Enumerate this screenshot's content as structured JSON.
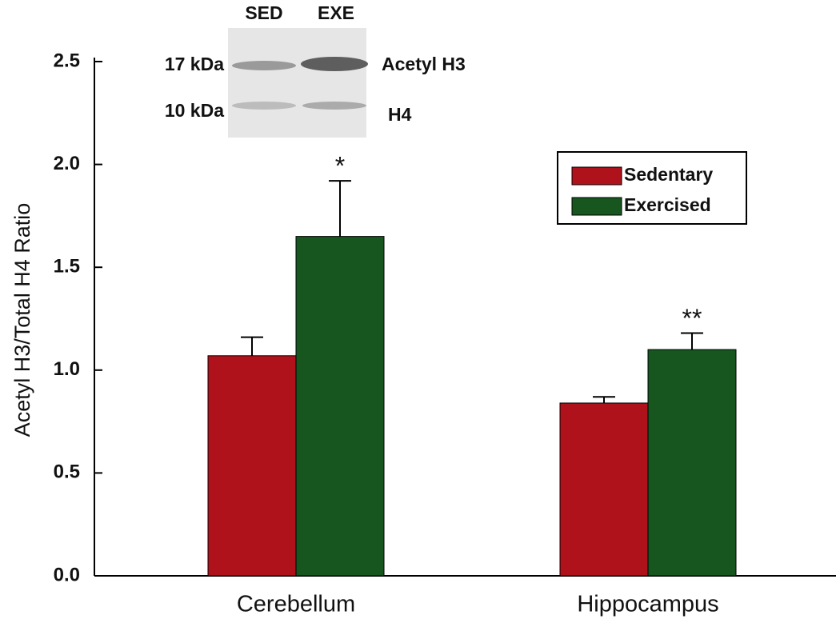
{
  "chart_data": {
    "type": "bar",
    "y_label": "Acetyl H3/Total H4 Ratio",
    "categories": [
      "Cerebellum",
      "Hippocampus"
    ],
    "series": [
      {
        "name": "Sedentary",
        "color": "#b0121c",
        "values": [
          1.07,
          0.84
        ],
        "errors": [
          0.09,
          0.03
        ]
      },
      {
        "name": "Exercised",
        "color": "#17561f",
        "values": [
          1.65,
          1.1
        ],
        "errors": [
          0.27,
          0.08
        ],
        "annotations": [
          "*",
          "**"
        ]
      }
    ],
    "ylim": [
      0,
      2.5
    ],
    "yticks": [
      {
        "value": 0,
        "label": "0.0"
      },
      0.5,
      {
        "value": 1,
        "label": "1.0"
      },
      1.5,
      {
        "value": 2,
        "label": "2.0"
      },
      2.5
    ],
    "inset": {
      "lanes": [
        "SED",
        "EXE"
      ],
      "markers": [
        "17 kDa",
        "10 kDa"
      ],
      "bands": [
        "Acetyl H3",
        "H4"
      ]
    }
  }
}
